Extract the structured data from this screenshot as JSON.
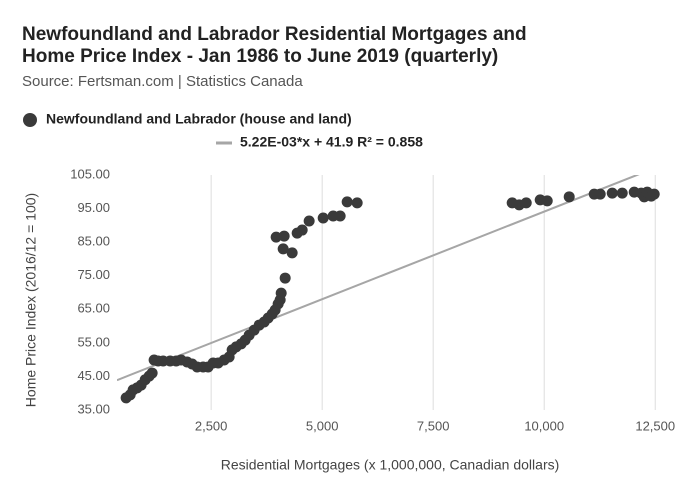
{
  "chart_data": {
    "type": "scatter",
    "title": "Newfoundland and Labrador Residential Mortgages and Home Price Index - Jan 1986 to June 2019 (quarterly)",
    "subtitle": "Source: Fertsman.com | Statistics Canada",
    "x_label": "Residential Mortgages (x 1,000,000, Canadian dollars)",
    "y_label": "Home Price Index (2016/12 = 100)",
    "xlim": [
      380,
      12720
    ],
    "ylim": [
      35,
      105
    ],
    "xticks": [
      {
        "value": 2500,
        "label": "2,500"
      },
      {
        "value": 5000,
        "label": "5,000"
      },
      {
        "value": 7500,
        "label": "7,500"
      },
      {
        "value": 10000,
        "label": "10,000"
      },
      {
        "value": 12500,
        "label": "12,500"
      }
    ],
    "yticks": [
      {
        "value": 35,
        "label": "35.00"
      },
      {
        "value": 45,
        "label": "45.00"
      },
      {
        "value": 55,
        "label": "55.00"
      },
      {
        "value": 65,
        "label": "65.00"
      },
      {
        "value": 75,
        "label": "75.00"
      },
      {
        "value": 85,
        "label": "85.00"
      },
      {
        "value": 95,
        "label": "95.00"
      },
      {
        "value": 105,
        "label": "105.00"
      }
    ],
    "grid": "x",
    "series": [
      {
        "name": "Newfoundland and Labrador (house and land)",
        "color": "#3a3a3a",
        "x": [
          586,
          676,
          743,
          833,
          923,
          1014,
          1104,
          1171,
          1216,
          1306,
          1419,
          1577,
          1712,
          1824,
          1959,
          2072,
          2185,
          2320,
          2432,
          2545,
          2658,
          2793,
          2905,
          2973,
          3063,
          3176,
          3266,
          3356,
          3468,
          3581,
          3694,
          3784,
          3874,
          3941,
          4009,
          4054,
          4077,
          4167,
          4122,
          4324,
          3964,
          4144,
          4437,
          4550,
          4707,
          5023,
          5248,
          5405,
          5563,
          5788,
          9279,
          9437,
          9595,
          9910,
          10068,
          10563,
          11126,
          11261,
          11532,
          11757,
          12027,
          12185,
          12252,
          12320,
          12410,
          12477
        ],
        "values": [
          38.6,
          39.5,
          41,
          41.6,
          42.4,
          44,
          45.1,
          46,
          49.9,
          49.6,
          49.6,
          49.6,
          49.6,
          49.9,
          49.3,
          48.7,
          47.8,
          47.8,
          47.8,
          49,
          49,
          49.9,
          50.8,
          52.9,
          53.8,
          54.7,
          55.8,
          57.3,
          58.8,
          60.3,
          61.2,
          62.4,
          63.6,
          64.8,
          66.6,
          67.8,
          69.8,
          74.3,
          83,
          81.8,
          86.5,
          86.8,
          87.7,
          88.6,
          91.3,
          92.2,
          92.8,
          92.8,
          97,
          96.7,
          96.7,
          96.1,
          96.7,
          97.6,
          97.3,
          98.5,
          99.3,
          99.3,
          99.6,
          99.6,
          99.9,
          99.6,
          98.5,
          99.9,
          98.7,
          99.3
        ]
      },
      {
        "name": "5.22E-03*x + 41.9 R² = 0.858",
        "type": "trendline",
        "color": "#a6a6a6",
        "slope": 0.00522,
        "intercept": 41.9
      }
    ]
  }
}
